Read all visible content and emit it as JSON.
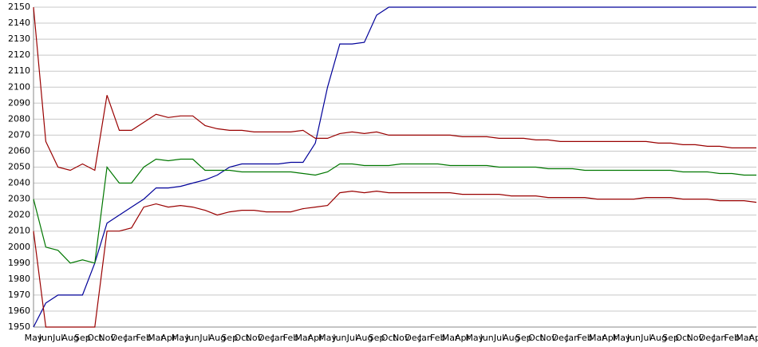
{
  "chart_data": {
    "type": "line",
    "categories": [
      "May",
      "Jun",
      "Jul",
      "Aug",
      "Sep",
      "Oct",
      "Nov",
      "Dec",
      "Jan",
      "Feb",
      "Mar",
      "Apr",
      "May",
      "Jun",
      "Jul",
      "Aug",
      "Sep",
      "Oct",
      "Nov",
      "Dec",
      "Jan",
      "Feb",
      "Mar",
      "Apr",
      "May",
      "Jun",
      "Jul",
      "Aug",
      "Sep",
      "Oct",
      "Nov",
      "Dec",
      "Jan",
      "Feb",
      "Mar",
      "Apr",
      "May",
      "Jun",
      "Jul",
      "Aug",
      "Sep",
      "Oct",
      "Nov",
      "Dec",
      "Jan",
      "Feb",
      "Mar",
      "Apr",
      "May",
      "Jun",
      "Jul",
      "Aug",
      "Sep",
      "Oct",
      "Nov",
      "Dec",
      "Jan",
      "Feb",
      "Mar",
      "Apr"
    ],
    "series": [
      {
        "color": "#000099",
        "values": [
          1950,
          1965,
          1970,
          1970,
          1970,
          1990,
          2015,
          2020,
          2025,
          2030,
          2037,
          2037,
          2038,
          2040,
          2042,
          2045,
          2050,
          2052,
          2052,
          2052,
          2052,
          2053,
          2053,
          2065,
          2100,
          2127,
          2127,
          2128,
          2145,
          2150,
          2150,
          2150,
          2150,
          2150,
          2150,
          2150,
          2150,
          2150,
          2150,
          2150,
          2150,
          2150,
          2150,
          2150,
          2150,
          2150,
          2150,
          2150,
          2150,
          2150,
          2150,
          2150,
          2150,
          2150,
          2150,
          2150,
          2150,
          2150,
          2150,
          2150
        ]
      },
      {
        "color": "#990000",
        "values": [
          2150,
          2066,
          2050,
          2048,
          2052,
          2048,
          2095,
          2073,
          2073,
          2078,
          2083,
          2081,
          2082,
          2082,
          2076,
          2074,
          2073,
          2073,
          2072,
          2072,
          2072,
          2072,
          2073,
          2068,
          2068,
          2071,
          2072,
          2071,
          2072,
          2070,
          2070,
          2070,
          2070,
          2070,
          2070,
          2069,
          2069,
          2069,
          2068,
          2068,
          2068,
          2067,
          2067,
          2066,
          2066,
          2066,
          2066,
          2066,
          2066,
          2066,
          2066,
          2065,
          2065,
          2064,
          2064,
          2063,
          2063,
          2062,
          2062,
          2062
        ]
      },
      {
        "color": "#007700",
        "values": [
          2030,
          2000,
          1998,
          1990,
          1992,
          1990,
          2050,
          2040,
          2040,
          2050,
          2055,
          2054,
          2055,
          2055,
          2048,
          2048,
          2048,
          2047,
          2047,
          2047,
          2047,
          2047,
          2046,
          2045,
          2047,
          2052,
          2052,
          2051,
          2051,
          2051,
          2052,
          2052,
          2052,
          2052,
          2051,
          2051,
          2051,
          2051,
          2050,
          2050,
          2050,
          2050,
          2049,
          2049,
          2049,
          2048,
          2048,
          2048,
          2048,
          2048,
          2048,
          2048,
          2048,
          2047,
          2047,
          2047,
          2046,
          2046,
          2045,
          2045
        ]
      },
      {
        "color": "#990000",
        "values": [
          2010,
          1950,
          1950,
          1950,
          1950,
          1950,
          2010,
          2010,
          2012,
          2025,
          2027,
          2025,
          2026,
          2025,
          2023,
          2020,
          2022,
          2023,
          2023,
          2022,
          2022,
          2022,
          2024,
          2025,
          2026,
          2034,
          2035,
          2034,
          2035,
          2034,
          2034,
          2034,
          2034,
          2034,
          2034,
          2033,
          2033,
          2033,
          2033,
          2032,
          2032,
          2032,
          2031,
          2031,
          2031,
          2031,
          2030,
          2030,
          2030,
          2030,
          2031,
          2031,
          2031,
          2030,
          2030,
          2030,
          2029,
          2029,
          2029,
          2028
        ]
      }
    ],
    "ylim": [
      1950,
      2150
    ],
    "yticks": [
      1950,
      1960,
      1970,
      1980,
      1990,
      2000,
      2010,
      2020,
      2030,
      2040,
      2050,
      2060,
      2070,
      2080,
      2090,
      2100,
      2110,
      2120,
      2130,
      2140,
      2150
    ],
    "grid": true
  }
}
